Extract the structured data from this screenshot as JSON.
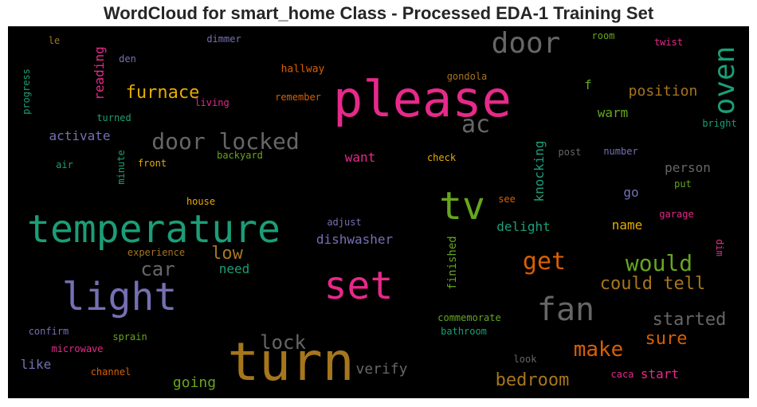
{
  "chart_data": {
    "type": "wordcloud",
    "title": "WordCloud for smart_home Class - Processed EDA-1 Training Set",
    "background": "#000000",
    "words": [
      {
        "text": "please",
        "color": "#e7298a"
      },
      {
        "text": "turn",
        "color": "#a6761d"
      },
      {
        "text": "temperature",
        "color": "#1b9e77"
      },
      {
        "text": "light",
        "color": "#7570b3"
      },
      {
        "text": "set",
        "color": "#e7298a"
      },
      {
        "text": "tv",
        "color": "#66a61e"
      },
      {
        "text": "door",
        "color": "#666666"
      },
      {
        "text": "oven",
        "color": "#1b9e77"
      },
      {
        "text": "fan",
        "color": "#666666"
      },
      {
        "text": "door locked",
        "color": "#666666"
      },
      {
        "text": "ac",
        "color": "#666666"
      },
      {
        "text": "get",
        "color": "#d95f02"
      },
      {
        "text": "would",
        "color": "#66a61e"
      },
      {
        "text": "make",
        "color": "#d95f02"
      },
      {
        "text": "furnace",
        "color": "#e6ab02"
      },
      {
        "text": "lock",
        "color": "#666666"
      },
      {
        "text": "car",
        "color": "#666666"
      },
      {
        "text": "bedroom",
        "color": "#a6761d"
      },
      {
        "text": "could tell",
        "color": "#a6761d"
      },
      {
        "text": "started",
        "color": "#666666"
      },
      {
        "text": "low",
        "color": "#a6761d"
      },
      {
        "text": "sure",
        "color": "#d95f02"
      },
      {
        "text": "position",
        "color": "#a6761d"
      },
      {
        "text": "activate",
        "color": "#7570b3"
      },
      {
        "text": "dishwasher",
        "color": "#7570b3"
      },
      {
        "text": "delight",
        "color": "#1b9e77"
      },
      {
        "text": "going",
        "color": "#66a61e"
      },
      {
        "text": "verify",
        "color": "#666666"
      },
      {
        "text": "start",
        "color": "#e7298a"
      },
      {
        "text": "want",
        "color": "#e7298a"
      },
      {
        "text": "warm",
        "color": "#66a61e"
      },
      {
        "text": "person",
        "color": "#666666"
      },
      {
        "text": "name",
        "color": "#e6ab02"
      },
      {
        "text": "like",
        "color": "#7570b3"
      },
      {
        "text": "need",
        "color": "#1b9e77"
      },
      {
        "text": "go",
        "color": "#7570b3"
      },
      {
        "text": "f",
        "color": "#66a61e"
      },
      {
        "text": "reading",
        "color": "#e7298a"
      },
      {
        "text": "knocking",
        "color": "#1b9e77"
      },
      {
        "text": "finished",
        "color": "#66a61e"
      },
      {
        "text": "hallway",
        "color": "#d95f02"
      },
      {
        "text": "gondola",
        "color": "#a6761d"
      },
      {
        "text": "remember",
        "color": "#d95f02"
      },
      {
        "text": "living",
        "color": "#e7298a"
      },
      {
        "text": "dimmer",
        "color": "#7570b3"
      },
      {
        "text": "den",
        "color": "#7570b3"
      },
      {
        "text": "le",
        "color": "#a6761d"
      },
      {
        "text": "room",
        "color": "#66a61e"
      },
      {
        "text": "twist",
        "color": "#e7298a"
      },
      {
        "text": "bright",
        "color": "#1b9e77"
      },
      {
        "text": "progress",
        "color": "#1b9e77"
      },
      {
        "text": "turned",
        "color": "#1b9e77"
      },
      {
        "text": "minute",
        "color": "#1b9e77"
      },
      {
        "text": "air",
        "color": "#1b9e77"
      },
      {
        "text": "front",
        "color": "#e6ab02"
      },
      {
        "text": "backyard",
        "color": "#66a61e"
      },
      {
        "text": "check",
        "color": "#e6ab02"
      },
      {
        "text": "post",
        "color": "#666666"
      },
      {
        "text": "number",
        "color": "#7570b3"
      },
      {
        "text": "put",
        "color": "#66a61e"
      },
      {
        "text": "see",
        "color": "#d95f02"
      },
      {
        "text": "garage",
        "color": "#e7298a"
      },
      {
        "text": "dim",
        "color": "#e7298a"
      },
      {
        "text": "house",
        "color": "#e6ab02"
      },
      {
        "text": "adjust",
        "color": "#7570b3"
      },
      {
        "text": "experience",
        "color": "#a6761d"
      },
      {
        "text": "commemorate",
        "color": "#66a61e"
      },
      {
        "text": "bathroom",
        "color": "#1b9e77"
      },
      {
        "text": "confirm",
        "color": "#7570b3"
      },
      {
        "text": "sprain",
        "color": "#66a61e"
      },
      {
        "text": "microwave",
        "color": "#e7298a"
      },
      {
        "text": "channel",
        "color": "#d95f02"
      },
      {
        "text": "look",
        "color": "#666666"
      },
      {
        "text": "caca",
        "color": "#e7298a"
      }
    ]
  }
}
